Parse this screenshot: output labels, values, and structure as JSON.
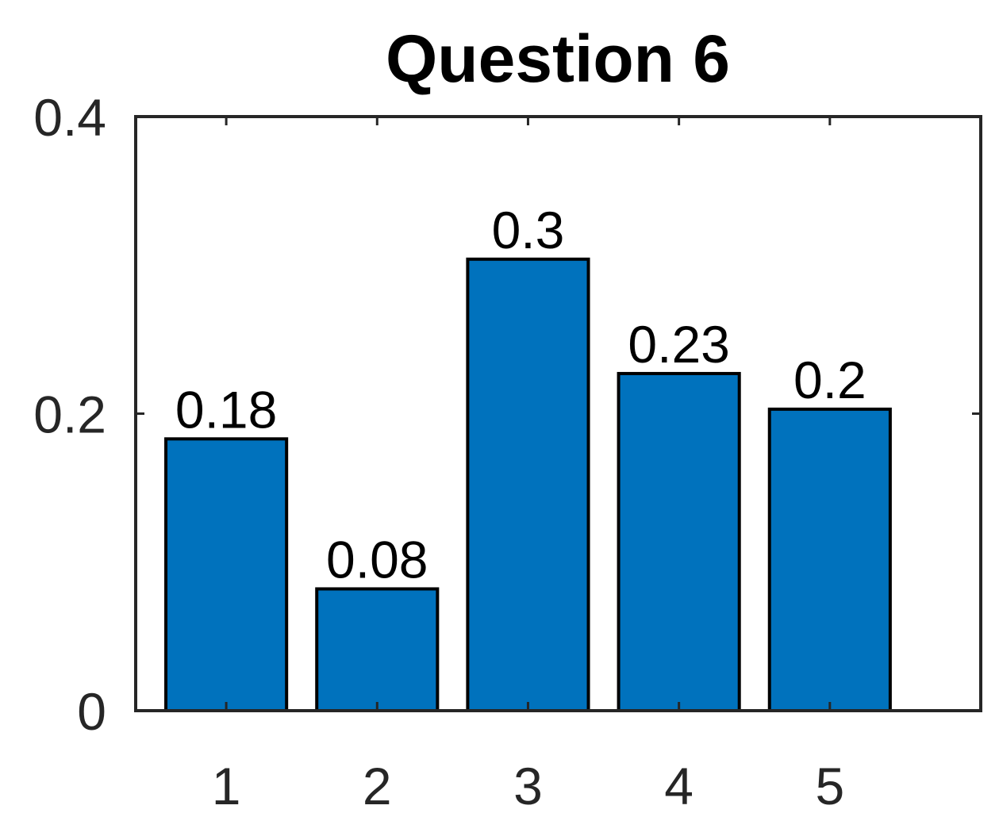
{
  "chart_data": {
    "type": "bar",
    "title": "Question 6",
    "xlabel": "",
    "ylabel": "",
    "categories": [
      "1",
      "2",
      "3",
      "4",
      "5"
    ],
    "values": [
      0.18,
      0.08,
      0.3,
      0.23,
      0.2
    ],
    "bar_value_estimates": [
      0.183,
      0.082,
      0.304,
      0.227,
      0.203
    ],
    "data_labels": [
      "0.18",
      "0.08",
      "0.3",
      "0.23",
      "0.2"
    ],
    "xlim": [
      0.4,
      6
    ],
    "ylim": [
      0,
      0.4
    ],
    "yticks": [
      0,
      0.2,
      0.4
    ],
    "ytick_labels": [
      "0",
      "0.2",
      "0.4"
    ],
    "grid": false,
    "legend": "none",
    "bar_color": "#0072BD",
    "edge_color": "#000000",
    "axis_color": "#262626"
  }
}
